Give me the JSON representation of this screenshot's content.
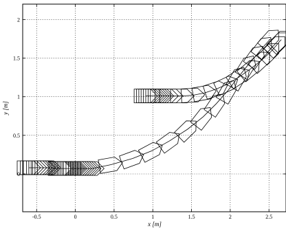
{
  "chart_data": {
    "type": "line",
    "title": "",
    "xlabel": "x [m]",
    "ylabel": "y [m]",
    "xlim": [
      -0.68,
      2.72
    ],
    "ylim": [
      -0.49,
      2.2
    ],
    "xticks": [
      -0.5,
      0,
      0.5,
      1,
      1.5,
      2,
      2.5
    ],
    "xtick_labels": [
      "-0.5",
      "0",
      "0.5",
      "1",
      "1.5",
      "2",
      "2.5"
    ],
    "yticks": [
      0,
      0.5,
      1,
      1.5,
      2
    ],
    "ytick_labels": [
      "0",
      "0.5",
      "1",
      "1.5",
      "2"
    ],
    "grid": true,
    "legend": "none",
    "series": [
      {
        "poses": [
          [
            -0.6,
            0.08,
            0
          ],
          [
            -0.56,
            0.08,
            0
          ],
          [
            -0.52,
            0.08,
            0
          ],
          [
            -0.48,
            0.08,
            0
          ],
          [
            -0.45,
            0.08,
            0
          ],
          [
            -0.42,
            0.08,
            0
          ],
          [
            -0.4,
            0.08,
            0
          ],
          [
            -0.37,
            0.08,
            0
          ],
          [
            -0.34,
            0.08,
            0
          ],
          [
            -0.2,
            0.07,
            0
          ],
          [
            -0.18,
            0.07,
            0
          ],
          [
            -0.16,
            0.07,
            0
          ],
          [
            -0.14,
            0.07,
            0
          ],
          [
            -0.12,
            0.07,
            0
          ],
          [
            -0.1,
            0.07,
            0
          ],
          [
            -0.08,
            0.07,
            0
          ],
          [
            -0.06,
            0.07,
            0
          ],
          [
            -0.04,
            0.07,
            0
          ],
          [
            -0.02,
            0.07,
            0
          ],
          [
            0.0,
            0.07,
            0
          ],
          [
            0.03,
            0.07,
            0
          ],
          [
            0.06,
            0.07,
            0
          ],
          [
            0.09,
            0.07,
            0
          ],
          [
            0.12,
            0.07,
            0
          ],
          [
            0.15,
            0.07,
            0
          ],
          [
            0.18,
            0.07,
            0
          ],
          [
            0.22,
            0.07,
            0
          ],
          [
            0.46,
            0.12,
            10
          ],
          [
            0.74,
            0.2,
            20
          ],
          [
            0.99,
            0.3,
            28
          ],
          [
            1.22,
            0.43,
            36
          ],
          [
            1.45,
            0.58,
            44
          ],
          [
            1.65,
            0.74,
            52
          ],
          [
            1.82,
            0.91,
            56
          ],
          [
            1.97,
            1.08,
            60
          ],
          [
            2.1,
            1.25,
            60
          ],
          [
            2.22,
            1.4,
            58
          ],
          [
            2.33,
            1.53,
            55
          ],
          [
            2.43,
            1.65,
            52
          ],
          [
            2.52,
            1.75,
            48
          ]
        ]
      },
      {
        "poses": [
          [
            0.91,
            1.01,
            0
          ],
          [
            0.94,
            1.01,
            0
          ],
          [
            0.97,
            1.01,
            0
          ],
          [
            1.0,
            1.01,
            0
          ],
          [
            1.03,
            1.01,
            0
          ],
          [
            1.06,
            1.01,
            0
          ],
          [
            1.09,
            1.01,
            0
          ],
          [
            1.12,
            1.01,
            0
          ],
          [
            1.18,
            1.01,
            0
          ],
          [
            1.24,
            1.01,
            0
          ],
          [
            1.38,
            1.01,
            0
          ],
          [
            1.52,
            1.02,
            3
          ],
          [
            1.67,
            1.05,
            10
          ],
          [
            1.82,
            1.1,
            18
          ],
          [
            1.96,
            1.16,
            25
          ],
          [
            2.12,
            1.26,
            33
          ],
          [
            2.26,
            1.36,
            40
          ],
          [
            2.4,
            1.47,
            43
          ],
          [
            2.52,
            1.58,
            45
          ],
          [
            2.6,
            1.67,
            45
          ],
          [
            2.64,
            1.72,
            45
          ],
          [
            2.66,
            1.74,
            45
          ]
        ]
      }
    ]
  }
}
